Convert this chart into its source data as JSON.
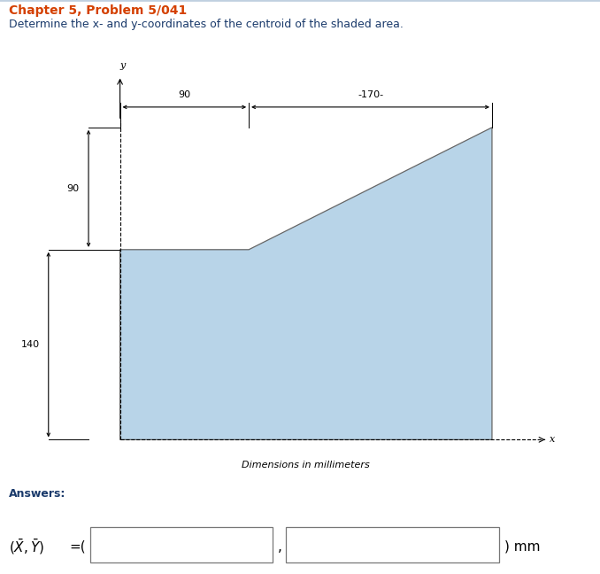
{
  "title_line1": "Chapter 5, Problem 5/041",
  "title_line2": "Determine the x- and y-coordinates of the centroid of the shaded area.",
  "title_color": "#d44000",
  "subtitle_color": "#1a3a6b",
  "shape_color": "#b8d4e8",
  "shape_edge_color": "#666666",
  "bg_color": "#ffffff",
  "answers_label": "Answers:",
  "dim_label": "Dimensions in millimeters",
  "border_color": "#c0d0e0",
  "dim_90_h": "90",
  "dim_170_h": "-170-",
  "dim_90_v": "90",
  "dim_140_v": "140"
}
